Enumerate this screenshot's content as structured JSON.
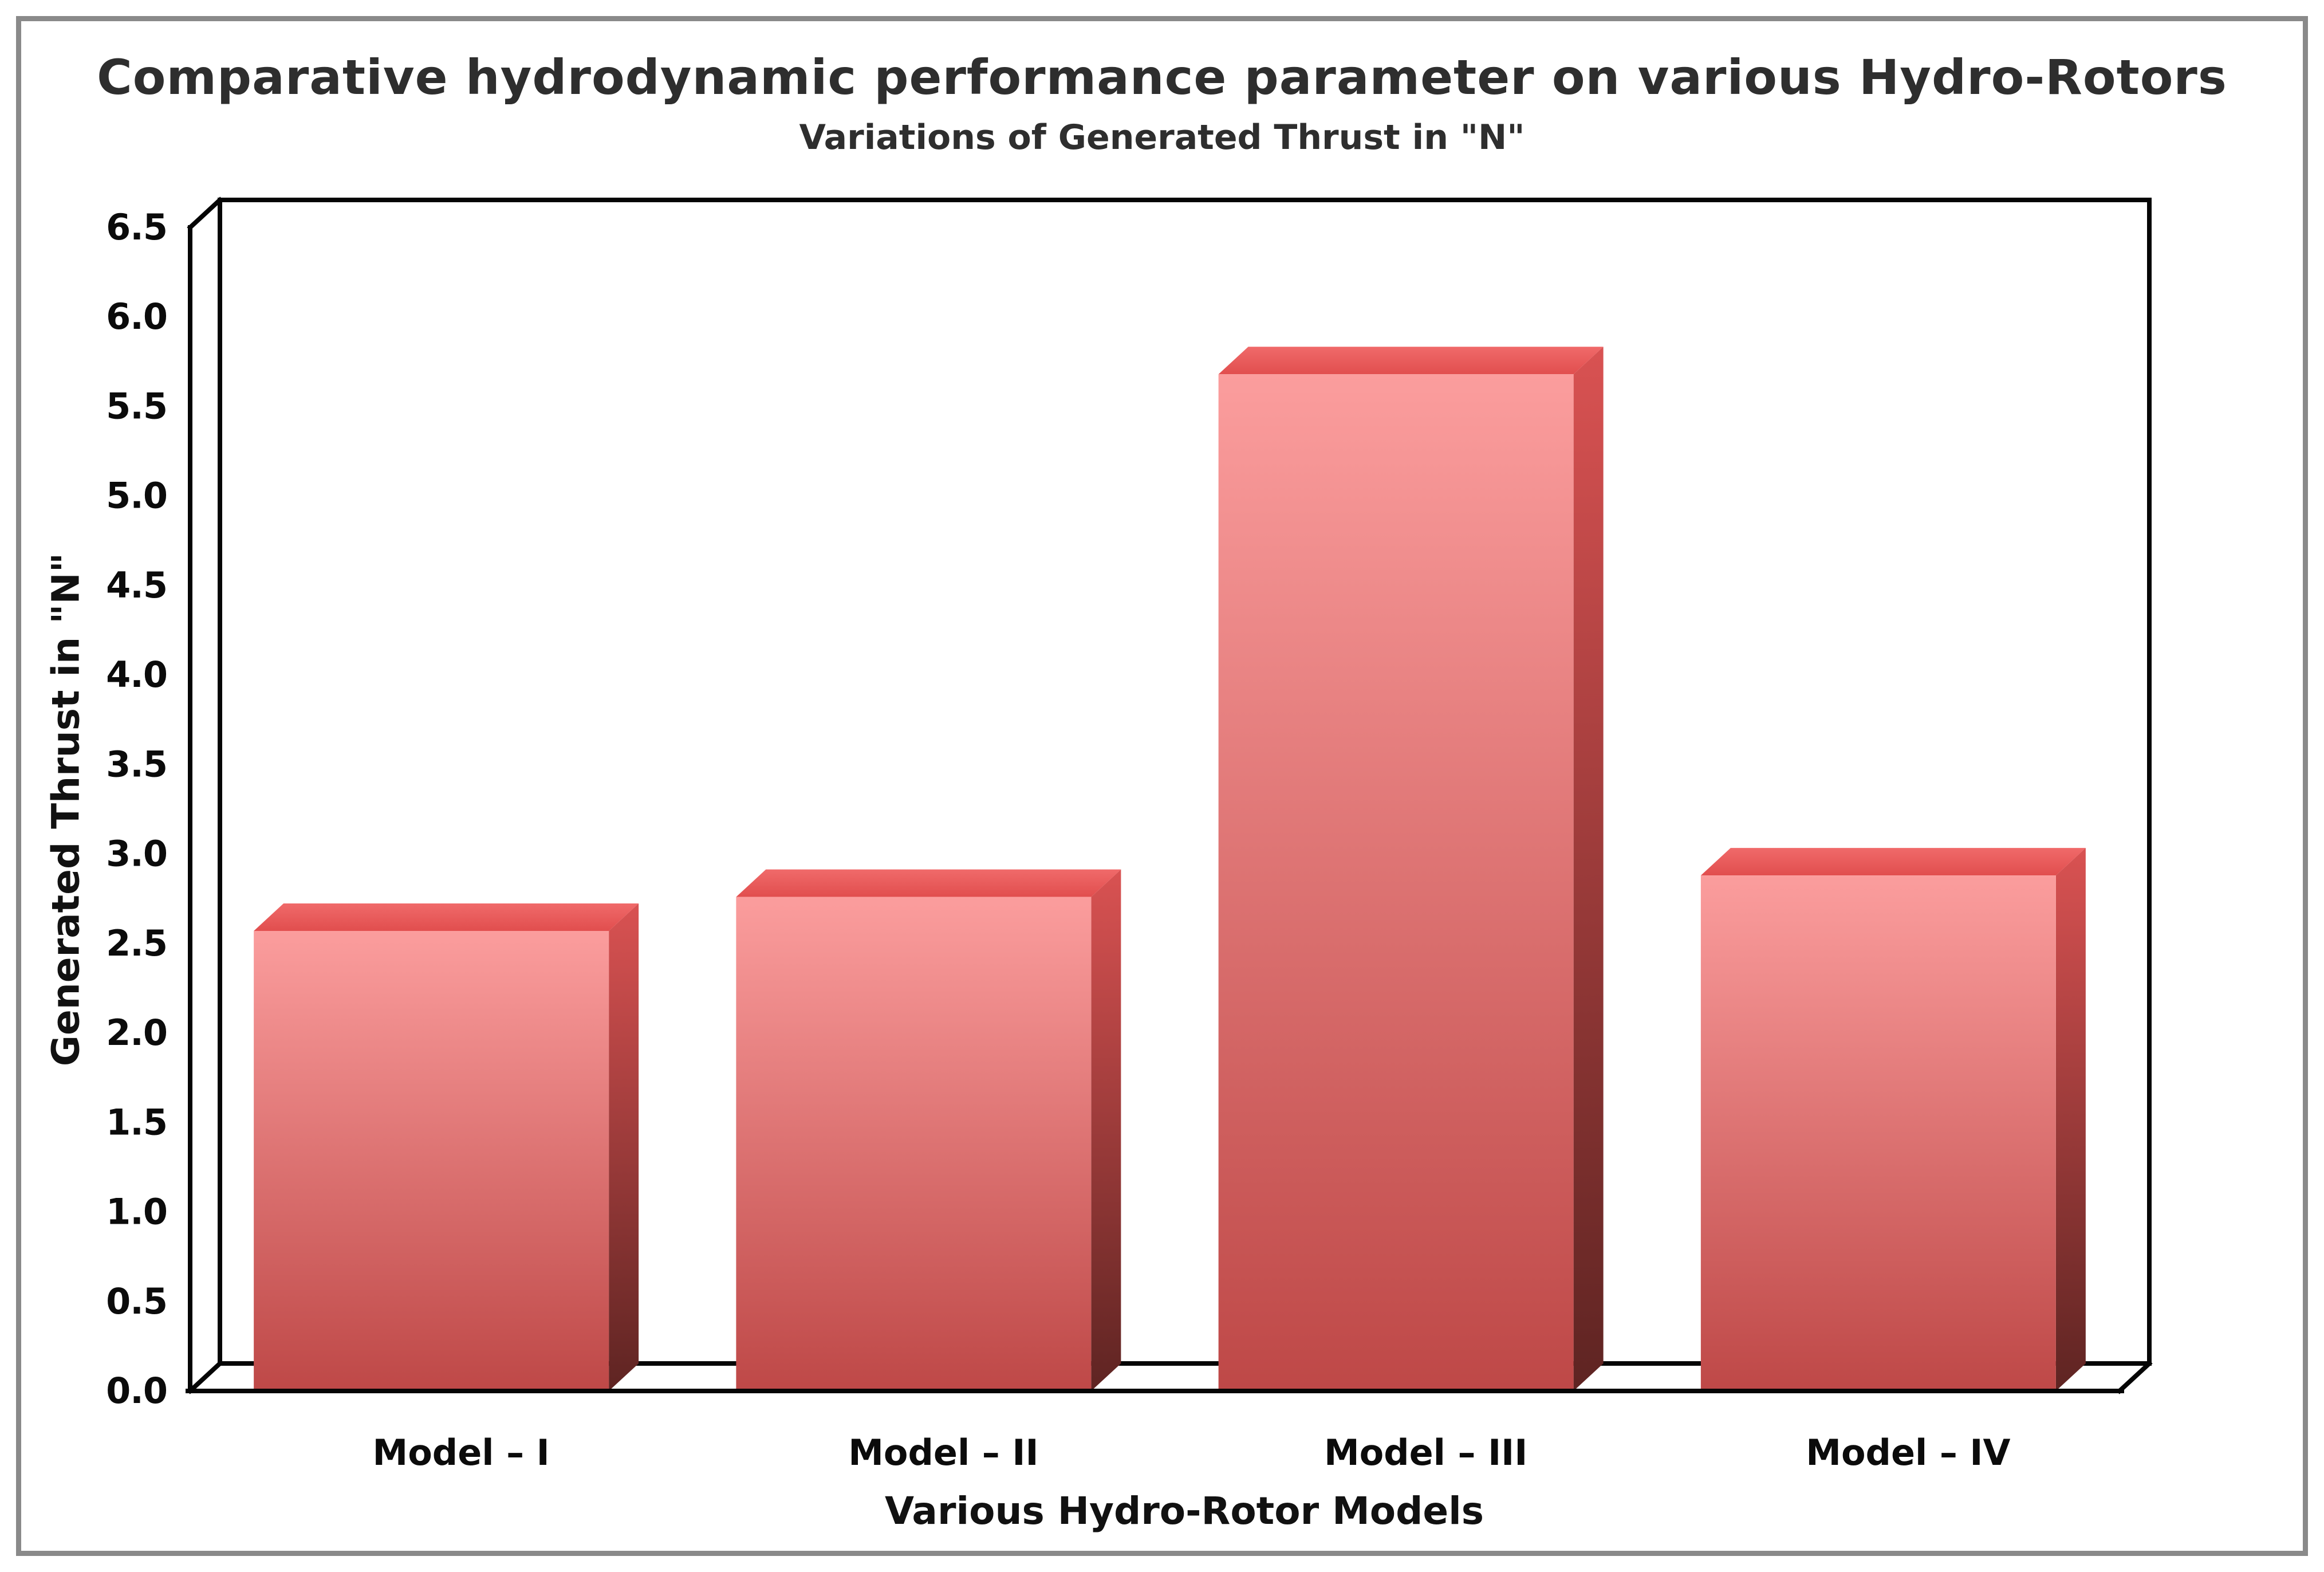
{
  "page": {
    "background_color": "#ffffff",
    "border_color": "#8a8a8a"
  },
  "chart_data": {
    "type": "bar",
    "style": "3d-box-bars",
    "title": "Comparative hydrodynamic performance parameter on various Hydro-Rotors",
    "subtitle": "Variations of Generated Thrust in \"N\"",
    "categories": [
      "Model – I",
      "Model – II",
      "Model – III",
      "Model – IV"
    ],
    "values": [
      2.57,
      2.76,
      5.68,
      2.88
    ],
    "xlabel": "Various Hydro-Rotor Models",
    "ylabel": "Generated Thrust in \"N\"",
    "ylim": [
      0,
      6.5
    ],
    "ytick_step": 0.5,
    "ytick_labels": [
      "0.0",
      "0.5",
      "1.0",
      "1.5",
      "2.0",
      "2.5",
      "3.0",
      "3.5",
      "4.0",
      "4.5",
      "5.0",
      "5.5",
      "6.0",
      "6.5"
    ],
    "grid": false,
    "legend": "none",
    "colors": {
      "bar_front_top": "#fb9d9d",
      "bar_front_bottom": "#be4847",
      "bar_side_top": "#d95252",
      "bar_side_bottom": "#5e2422",
      "bar_top_light": "#f06a6a",
      "bar_top_dark": "#e14e4e",
      "axis_line": "#050505",
      "text": "#111111"
    }
  }
}
